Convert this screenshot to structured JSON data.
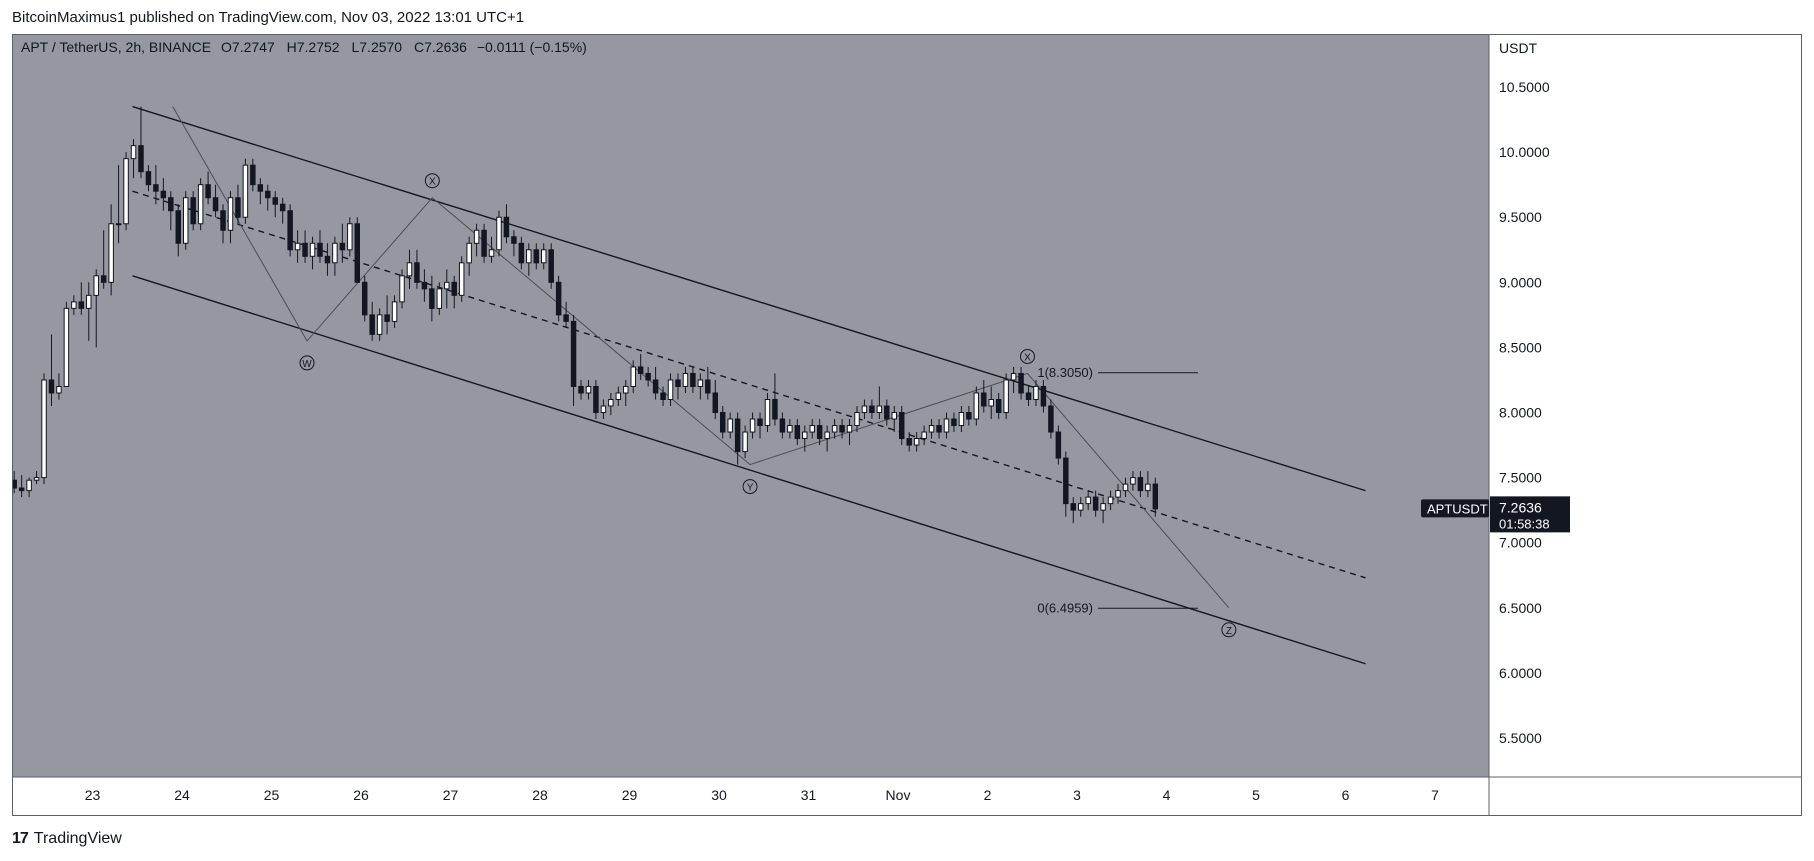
{
  "header": {
    "publisher_text": "BitcoinMaximus1 published on TradingView.com, Nov 03, 2022 13:01 UTC+1"
  },
  "legend": {
    "symbol_line": "APT / TetherUS, 2h, BINANCE",
    "open_label": "O",
    "open": "7.2747",
    "high_label": "H",
    "high": "7.2752",
    "low_label": "L",
    "low": "7.2570",
    "close_label": "C",
    "close": "7.2636",
    "change": "−0.0111 (−0.15%)"
  },
  "footer": {
    "brand": "TradingView"
  },
  "price_badge": {
    "symbol": "APTUSDT",
    "price": "7.2636",
    "countdown": "01:58:38"
  },
  "colors": {
    "pane_bg": "#9598a1",
    "bull_body": "#ffffff",
    "bear_body": "#131722",
    "wick": "#131722",
    "channel": "#131722",
    "wave": "#4a4d55"
  },
  "chart_data": {
    "type": "candlestick",
    "y_unit": "USDT",
    "ylim": [
      5.2,
      10.9
    ],
    "y_ticks": [
      "10.5000",
      "10.0000",
      "9.5000",
      "9.0000",
      "8.5000",
      "8.0000",
      "7.5000",
      "7.0000",
      "6.5000",
      "6.0000",
      "5.5000"
    ],
    "x_ticks": [
      "23",
      "24",
      "25",
      "26",
      "27",
      "28",
      "29",
      "30",
      "31",
      "Nov",
      "2",
      "3",
      "4",
      "5",
      "6",
      "7"
    ],
    "candles_ohlc": [
      [
        7.5,
        7.7,
        7.4,
        7.48
      ],
      [
        7.48,
        7.55,
        7.38,
        7.42
      ],
      [
        7.42,
        7.52,
        7.35,
        7.4
      ],
      [
        7.4,
        7.5,
        7.35,
        7.48
      ],
      [
        7.48,
        7.55,
        7.45,
        7.5
      ],
      [
        7.5,
        8.3,
        7.45,
        8.25
      ],
      [
        8.25,
        8.6,
        8.05,
        8.15
      ],
      [
        8.15,
        8.3,
        8.1,
        8.2
      ],
      [
        8.2,
        8.85,
        8.2,
        8.8
      ],
      [
        8.8,
        8.9,
        8.75,
        8.85
      ],
      [
        8.85,
        9.0,
        8.75,
        8.8
      ],
      [
        8.8,
        9.0,
        8.55,
        8.9
      ],
      [
        8.9,
        9.1,
        8.5,
        9.05
      ],
      [
        9.05,
        9.4,
        8.95,
        9.0
      ],
      [
        9.0,
        9.6,
        8.9,
        9.45
      ],
      [
        9.45,
        9.9,
        9.3,
        9.45
      ],
      [
        9.45,
        10.0,
        9.4,
        9.95
      ],
      [
        9.95,
        10.1,
        9.8,
        10.05
      ],
      [
        10.05,
        10.35,
        9.8,
        9.85
      ],
      [
        9.85,
        9.9,
        9.7,
        9.75
      ],
      [
        9.75,
        9.9,
        9.6,
        9.7
      ],
      [
        9.7,
        9.8,
        9.55,
        9.65
      ],
      [
        9.65,
        9.7,
        9.4,
        9.55
      ],
      [
        9.55,
        9.6,
        9.2,
        9.3
      ],
      [
        9.3,
        9.7,
        9.25,
        9.65
      ],
      [
        9.65,
        9.7,
        9.4,
        9.45
      ],
      [
        9.45,
        9.8,
        9.4,
        9.75
      ],
      [
        9.75,
        9.85,
        9.6,
        9.65
      ],
      [
        9.65,
        9.75,
        9.5,
        9.55
      ],
      [
        9.55,
        9.6,
        9.3,
        9.4
      ],
      [
        9.4,
        9.7,
        9.3,
        9.65
      ],
      [
        9.65,
        9.75,
        9.45,
        9.5
      ],
      [
        9.5,
        9.95,
        9.45,
        9.9
      ],
      [
        9.9,
        9.95,
        9.7,
        9.75
      ],
      [
        9.75,
        9.8,
        9.6,
        9.7
      ],
      [
        9.7,
        9.75,
        9.55,
        9.65
      ],
      [
        9.65,
        9.7,
        9.5,
        9.6
      ],
      [
        9.6,
        9.65,
        9.45,
        9.55
      ],
      [
        9.55,
        9.6,
        9.2,
        9.25
      ],
      [
        9.25,
        9.4,
        9.15,
        9.3
      ],
      [
        9.3,
        9.4,
        9.15,
        9.2
      ],
      [
        9.2,
        9.35,
        9.1,
        9.3
      ],
      [
        9.3,
        9.4,
        9.15,
        9.2
      ],
      [
        9.2,
        9.3,
        9.05,
        9.15
      ],
      [
        9.15,
        9.35,
        9.05,
        9.3
      ],
      [
        9.3,
        9.45,
        9.15,
        9.25
      ],
      [
        9.25,
        9.5,
        9.2,
        9.45
      ],
      [
        9.45,
        9.5,
        9.0,
        9.0
      ],
      [
        9.0,
        9.05,
        8.7,
        8.75
      ],
      [
        8.75,
        8.85,
        8.55,
        8.6
      ],
      [
        8.6,
        8.8,
        8.55,
        8.75
      ],
      [
        8.75,
        8.9,
        8.6,
        8.7
      ],
      [
        8.7,
        8.9,
        8.65,
        8.85
      ],
      [
        8.85,
        9.1,
        8.8,
        9.05
      ],
      [
        9.05,
        9.25,
        8.95,
        9.15
      ],
      [
        9.15,
        9.25,
        8.95,
        9.0
      ],
      [
        9.0,
        9.1,
        8.85,
        8.95
      ],
      [
        8.95,
        9.05,
        8.7,
        8.8
      ],
      [
        8.8,
        9.0,
        8.75,
        8.95
      ],
      [
        8.95,
        9.1,
        8.8,
        9.0
      ],
      [
        9.0,
        9.05,
        8.8,
        8.9
      ],
      [
        8.9,
        9.2,
        8.85,
        9.15
      ],
      [
        9.15,
        9.35,
        9.05,
        9.3
      ],
      [
        9.3,
        9.45,
        9.2,
        9.4
      ],
      [
        9.4,
        9.45,
        9.15,
        9.2
      ],
      [
        9.2,
        9.35,
        9.15,
        9.25
      ],
      [
        9.25,
        9.55,
        9.2,
        9.5
      ],
      [
        9.5,
        9.6,
        9.3,
        9.35
      ],
      [
        9.35,
        9.4,
        9.2,
        9.3
      ],
      [
        9.3,
        9.35,
        9.1,
        9.15
      ],
      [
        9.15,
        9.3,
        9.05,
        9.25
      ],
      [
        9.25,
        9.3,
        9.1,
        9.15
      ],
      [
        9.15,
        9.3,
        9.1,
        9.25
      ],
      [
        9.25,
        9.3,
        8.95,
        9.0
      ],
      [
        9.0,
        9.05,
        8.7,
        8.75
      ],
      [
        8.75,
        8.85,
        8.65,
        8.7
      ],
      [
        8.7,
        8.75,
        8.05,
        8.2
      ],
      [
        8.2,
        8.25,
        8.1,
        8.15
      ],
      [
        8.15,
        8.25,
        8.1,
        8.2
      ],
      [
        8.2,
        8.25,
        7.95,
        8.0
      ],
      [
        8.0,
        8.1,
        7.95,
        8.05
      ],
      [
        8.05,
        8.15,
        7.98,
        8.1
      ],
      [
        8.1,
        8.2,
        8.05,
        8.15
      ],
      [
        8.15,
        8.25,
        8.05,
        8.2
      ],
      [
        8.2,
        8.4,
        8.15,
        8.35
      ],
      [
        8.35,
        8.45,
        8.25,
        8.3
      ],
      [
        8.3,
        8.35,
        8.2,
        8.25
      ],
      [
        8.25,
        8.35,
        8.1,
        8.15
      ],
      [
        8.15,
        8.2,
        8.05,
        8.1
      ],
      [
        8.1,
        8.3,
        8.05,
        8.25
      ],
      [
        8.25,
        8.3,
        8.1,
        8.2
      ],
      [
        8.2,
        8.35,
        8.15,
        8.3
      ],
      [
        8.3,
        8.35,
        8.15,
        8.2
      ],
      [
        8.2,
        8.3,
        8.1,
        8.25
      ],
      [
        8.25,
        8.35,
        8.1,
        8.15
      ],
      [
        8.15,
        8.25,
        7.95,
        8.0
      ],
      [
        8.0,
        8.05,
        7.8,
        7.85
      ],
      [
        7.85,
        8.0,
        7.8,
        7.95
      ],
      [
        7.95,
        8.0,
        7.6,
        7.7
      ],
      [
        7.7,
        7.9,
        7.65,
        7.85
      ],
      [
        7.85,
        8.0,
        7.8,
        7.95
      ],
      [
        7.95,
        8.0,
        7.8,
        7.9
      ],
      [
        7.9,
        8.15,
        7.85,
        8.1
      ],
      [
        8.1,
        8.3,
        7.9,
        7.95
      ],
      [
        7.95,
        8.0,
        7.8,
        7.85
      ],
      [
        7.85,
        7.95,
        7.8,
        7.9
      ],
      [
        7.9,
        7.95,
        7.75,
        7.8
      ],
      [
        7.8,
        7.9,
        7.7,
        7.85
      ],
      [
        7.85,
        7.95,
        7.8,
        7.9
      ],
      [
        7.9,
        7.95,
        7.75,
        7.8
      ],
      [
        7.8,
        7.9,
        7.7,
        7.85
      ],
      [
        7.85,
        7.95,
        7.8,
        7.9
      ],
      [
        7.9,
        7.95,
        7.8,
        7.85
      ],
      [
        7.85,
        7.95,
        7.75,
        7.9
      ],
      [
        7.9,
        8.05,
        7.85,
        8.0
      ],
      [
        8.0,
        8.1,
        7.95,
        8.05
      ],
      [
        8.05,
        8.1,
        7.95,
        8.0
      ],
      [
        8.0,
        8.2,
        7.95,
        8.05
      ],
      [
        8.05,
        8.1,
        7.9,
        7.95
      ],
      [
        7.95,
        8.05,
        7.85,
        8.0
      ],
      [
        8.0,
        8.05,
        7.75,
        7.8
      ],
      [
        7.8,
        7.85,
        7.7,
        7.75
      ],
      [
        7.75,
        7.85,
        7.7,
        7.8
      ],
      [
        7.8,
        7.9,
        7.75,
        7.85
      ],
      [
        7.85,
        7.95,
        7.8,
        7.9
      ],
      [
        7.9,
        7.95,
        7.8,
        7.85
      ],
      [
        7.85,
        8.0,
        7.8,
        7.95
      ],
      [
        7.95,
        8.0,
        7.85,
        7.9
      ],
      [
        7.9,
        8.05,
        7.85,
        8.0
      ],
      [
        8.0,
        8.05,
        7.9,
        7.95
      ],
      [
        7.95,
        8.2,
        7.9,
        8.15
      ],
      [
        8.15,
        8.25,
        8.0,
        8.05
      ],
      [
        8.05,
        8.2,
        7.95,
        8.1
      ],
      [
        8.1,
        8.15,
        7.95,
        8.0
      ],
      [
        8.0,
        8.3,
        7.95,
        8.25
      ],
      [
        8.25,
        8.35,
        8.15,
        8.3
      ],
      [
        8.3,
        8.35,
        8.1,
        8.15
      ],
      [
        8.15,
        8.2,
        8.05,
        8.1
      ],
      [
        8.1,
        8.25,
        8.05,
        8.2
      ],
      [
        8.2,
        8.25,
        8.0,
        8.05
      ],
      [
        8.05,
        8.1,
        7.8,
        7.85
      ],
      [
        7.85,
        7.9,
        7.6,
        7.65
      ],
      [
        7.65,
        7.7,
        7.2,
        7.3
      ],
      [
        7.3,
        7.35,
        7.15,
        7.25
      ],
      [
        7.25,
        7.35,
        7.2,
        7.3
      ],
      [
        7.3,
        7.4,
        7.25,
        7.35
      ],
      [
        7.35,
        7.4,
        7.2,
        7.25
      ],
      [
        7.25,
        7.35,
        7.15,
        7.3
      ],
      [
        7.3,
        7.4,
        7.25,
        7.35
      ],
      [
        7.35,
        7.45,
        7.3,
        7.4
      ],
      [
        7.4,
        7.5,
        7.35,
        7.45
      ],
      [
        7.45,
        7.55,
        7.4,
        7.5
      ],
      [
        7.5,
        7.55,
        7.35,
        7.4
      ],
      [
        7.4,
        7.55,
        7.35,
        7.45
      ],
      [
        7.45,
        7.5,
        7.2,
        7.26
      ]
    ],
    "channel_upper": [
      [
        "Oct 23",
        10.35
      ],
      [
        "Nov 6",
        7.4
      ]
    ],
    "channel_lower": [
      [
        "Oct 23",
        9.05
      ],
      [
        "Nov 6",
        6.07
      ]
    ],
    "channel_mid": [
      [
        "Oct 23",
        9.7
      ],
      [
        "Nov 6",
        6.73
      ]
    ],
    "waves": [
      {
        "label": "W",
        "price": 8.55
      },
      {
        "label": "X",
        "price": 9.65
      },
      {
        "label": "Y",
        "price": 7.6
      },
      {
        "label": "X",
        "price": 8.3
      },
      {
        "label": "Z",
        "price": 6.5
      }
    ],
    "fib_levels": [
      {
        "label": "1(8.3050)",
        "price": 8.305
      },
      {
        "label": "0(6.4959)",
        "price": 6.4959
      }
    ]
  }
}
